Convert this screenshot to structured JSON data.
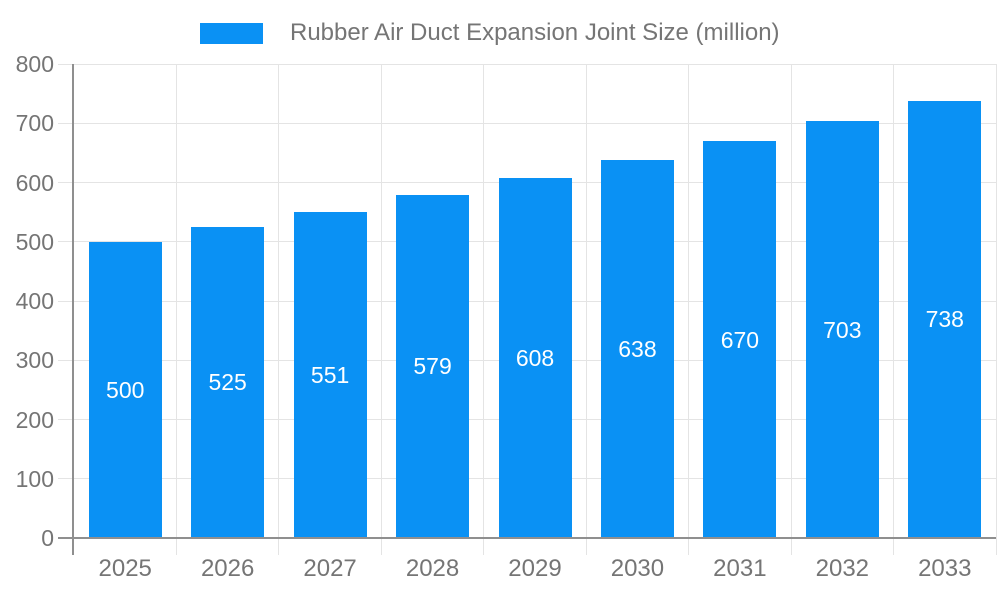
{
  "chart_data": {
    "type": "bar",
    "title": "Rubber Air Duct Expansion Joint Size (million)",
    "series_name": "Rubber Air Duct Expansion Joint Size (million)",
    "categories": [
      "2025",
      "2026",
      "2027",
      "2028",
      "2029",
      "2030",
      "2031",
      "2032",
      "2033"
    ],
    "values": [
      500,
      525,
      551,
      579,
      608,
      638,
      670,
      703,
      738
    ],
    "xlabel": "",
    "ylabel": "",
    "ylim": [
      0,
      800
    ],
    "yticks": [
      0,
      100,
      200,
      300,
      400,
      500,
      600,
      700,
      800
    ],
    "grid": true,
    "legend_position": "top-center",
    "value_labels_position": "inside-center"
  },
  "colors": {
    "bar": "#0A91F4",
    "gridline": "#E4E4E4",
    "axis_line": "#8F8F8F",
    "tick_text": "#757575",
    "value_label_text": "#FFFFFF",
    "background": "#FFFFFF"
  }
}
